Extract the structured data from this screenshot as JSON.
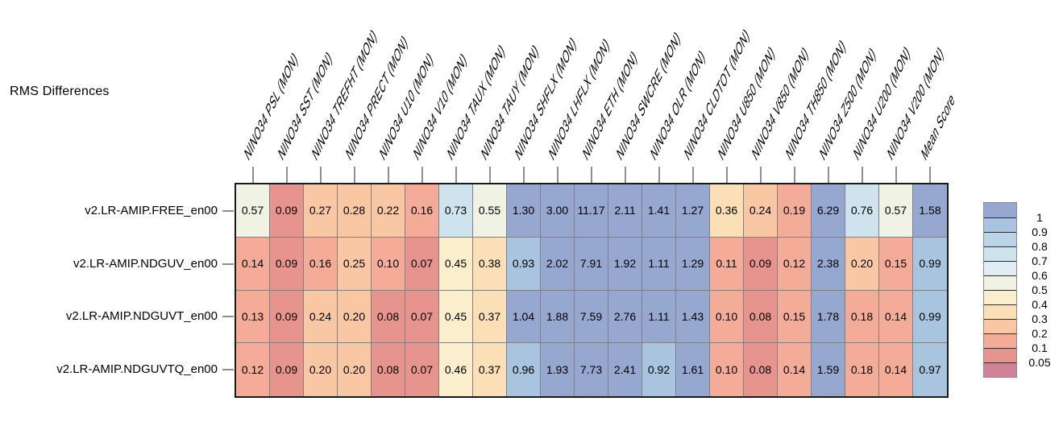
{
  "title": "RMS Differences",
  "chart_data": {
    "type": "heatmap",
    "title": "RMS Differences",
    "columns": [
      "NINO34 PSL (MON)",
      "NINO34 SST (MON)",
      "NINO34 TREFHT (MON)",
      "NINO34 PRECT (MON)",
      "NINO34 U10 (MON)",
      "NINO34 V10 (MON)",
      "NINO34 TAUX (MON)",
      "NINO34 TAUY (MON)",
      "NINO34 SHFLX (MON)",
      "NINO34 LHFLX (MON)",
      "NINO34 ETH (MON)",
      "NINO34 SWCRE (MON)",
      "NINO34 OLR (MON)",
      "NINO34 CLDTOT (MON)",
      "NINO34 U850 (MON)",
      "NINO34 V850 (MON)",
      "NINO34 TH850 (MON)",
      "NINO34 Z500 (MON)",
      "NINO34 U200 (MON)",
      "NINO34 V200 (MON)",
      "Mean Score"
    ],
    "rows": [
      "v2.LR-AMIP.FREE_en00",
      "v2.LR-AMIP.NDGUV_en00",
      "v2.LR-AMIP.NDGUVT_en00",
      "v2.LR-AMIP.NDGUVTQ_en00"
    ],
    "values": [
      [
        0.57,
        0.09,
        0.27,
        0.28,
        0.22,
        0.16,
        0.73,
        0.55,
        1.3,
        3.0,
        11.17,
        2.11,
        1.41,
        1.27,
        0.36,
        0.24,
        0.19,
        6.29,
        0.76,
        0.57,
        1.58
      ],
      [
        0.14,
        0.09,
        0.16,
        0.25,
        0.1,
        0.07,
        0.45,
        0.38,
        0.93,
        2.02,
        7.91,
        1.92,
        1.11,
        1.29,
        0.11,
        0.09,
        0.12,
        2.38,
        0.2,
        0.15,
        0.99
      ],
      [
        0.13,
        0.09,
        0.24,
        0.2,
        0.08,
        0.07,
        0.45,
        0.37,
        1.04,
        1.88,
        7.59,
        2.76,
        1.11,
        1.43,
        0.1,
        0.08,
        0.15,
        1.78,
        0.18,
        0.14,
        0.99
      ],
      [
        0.12,
        0.09,
        0.2,
        0.2,
        0.08,
        0.07,
        0.46,
        0.37,
        0.96,
        1.93,
        7.73,
        2.41,
        0.92,
        1.61,
        0.1,
        0.08,
        0.14,
        1.59,
        0.18,
        0.14,
        0.97
      ]
    ],
    "legend": {
      "position": "right",
      "tick_labels": [
        "1",
        "0.9",
        "0.8",
        "0.7",
        "0.6",
        "0.5",
        "0.4",
        "0.3",
        "0.2",
        "0.1",
        "0.05"
      ],
      "band_thresholds": [
        1,
        0.9,
        0.8,
        0.7,
        0.6,
        0.5,
        0.4,
        0.3,
        0.2,
        0.1,
        0.05
      ],
      "band_colors": [
        "#96a7d0",
        "#a9c4df",
        "#bad4e8",
        "#cfe3ee",
        "#e0edf3",
        "#f0f2e4",
        "#fbeecd",
        "#fbdfb6",
        "#f9c7a4",
        "#f4ab97",
        "#e8948e",
        "#d28296"
      ]
    },
    "grid_line_color": "#808080",
    "border_color": "#1a1a1a",
    "grid": true
  }
}
